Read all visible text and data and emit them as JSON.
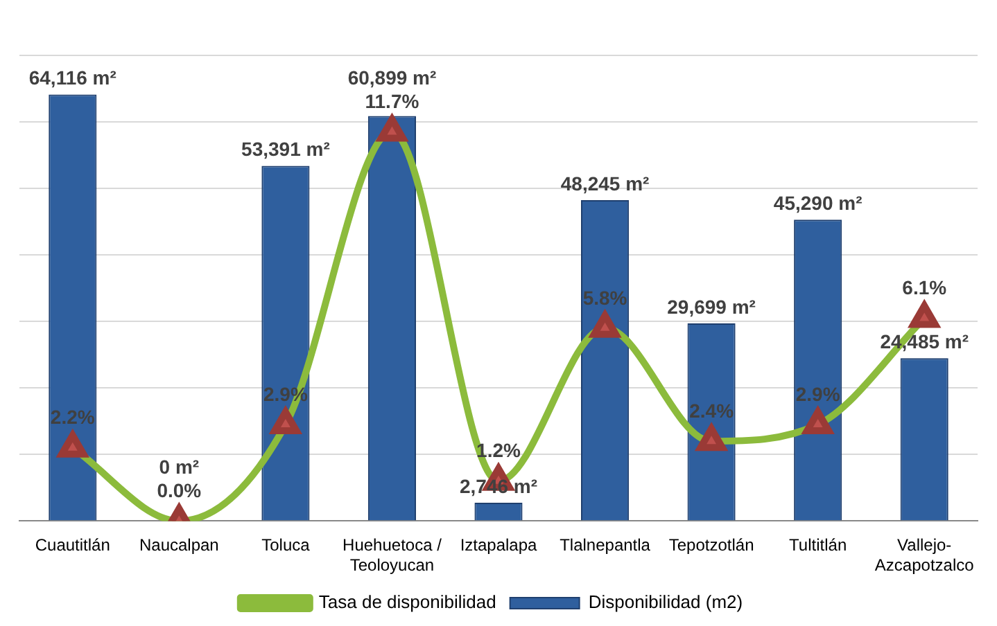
{
  "chart_data": {
    "type": "bar",
    "categories": [
      "Cuautitlán",
      "Naucalpan",
      "Toluca",
      "Huehuetoca /\nTeoloyucan",
      "Iztapalapa",
      "Tlalnepantla",
      "Tepotzotlán",
      "Tultitlán",
      "Vallejo-\nAzcapotzalco"
    ],
    "series": [
      {
        "name": "Disponibilidad (m2)",
        "color": "#2f5f9e",
        "values": [
          64116,
          0,
          53391,
          60899,
          2746,
          48245,
          29699,
          45290,
          24485
        ],
        "value_labels": [
          "64,116 m²",
          "0 m²",
          "53,391 m²",
          "60,899 m²",
          "2,746 m²",
          "48,245 m²",
          "29,699 m²",
          "45,290 m²",
          "24,485 m²"
        ]
      },
      {
        "name": "Tasa de disponibilidad",
        "type": "line",
        "axis": "y2",
        "color": "#8cbb3c",
        "marker": "triangle",
        "values": [
          2.2,
          0.0,
          2.9,
          11.7,
          1.2,
          5.8,
          2.4,
          2.9,
          6.1
        ],
        "value_labels": [
          "2.2%",
          "0.0%",
          "2.9%",
          "11.7%",
          "1.2%",
          "5.8%",
          "2.4%",
          "2.9%",
          "6.1%"
        ]
      }
    ],
    "ylim": [
      0,
      70000
    ],
    "yticks": [
      {
        "value": 0,
        "label": null
      },
      {
        "value": 10000,
        "label": null
      },
      {
        "value": 20000,
        "label": null
      },
      {
        "value": 30000,
        "label": null
      },
      {
        "value": 40000,
        "label": null
      },
      {
        "value": 50000,
        "label": null
      },
      {
        "value": 60000,
        "label": null
      },
      {
        "value": 70000,
        "label": null
      }
    ],
    "y2lim": [
      0,
      14
    ],
    "tick_labels": "x",
    "grid": "y",
    "legend": "bottom"
  }
}
